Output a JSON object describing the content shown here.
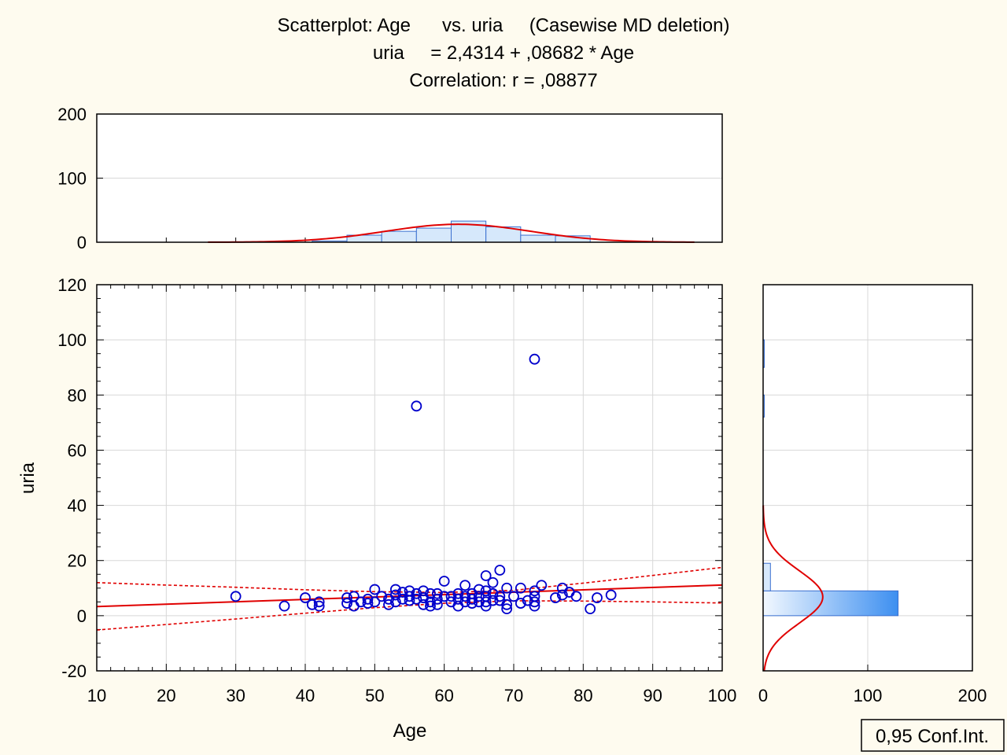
{
  "title": {
    "line1": "Scatterplot: Age      vs. uria     (Casewise MD deletion)",
    "line2": "uria     = 2,4314 + ,08682 * Age",
    "line3": "Correlation: r = ,08877"
  },
  "legend_label": "0,95 Conf.Int.",
  "colors": {
    "background": "#fefbef",
    "marker": "#0000cc",
    "fit_line": "#e00000",
    "hist_fill": "#d6e8fb",
    "hist_edge": "#3a6fd0",
    "grid": "#d8d8d8"
  },
  "chart_data": [
    {
      "type": "scatter",
      "xlabel": "Age",
      "ylabel": "uria",
      "xlim": [
        10,
        100
      ],
      "ylim": [
        -20,
        120
      ],
      "xticks": [
        10,
        20,
        30,
        40,
        50,
        60,
        70,
        80,
        90,
        100
      ],
      "yticks": [
        -20,
        0,
        20,
        40,
        60,
        80,
        100,
        120
      ],
      "xtick_labels": [
        "10",
        "20",
        "30",
        "40",
        "50",
        "60",
        "70",
        "80",
        "90",
        "100"
      ],
      "ytick_labels": [
        "-20",
        "0",
        "20",
        "40",
        "60",
        "80",
        "100",
        "120"
      ],
      "grid": true,
      "marker": "open-circle",
      "regression": {
        "intercept": 2.4314,
        "slope": 0.08682
      },
      "confidence_band": {
        "level": 0.95,
        "x": [
          10,
          20,
          30,
          40,
          50,
          60,
          70,
          80,
          90,
          100
        ],
        "lower": [
          -5.2,
          -3.2,
          -1.2,
          0.9,
          2.9,
          4.5,
          5.4,
          5.3,
          5.0,
          4.6
        ],
        "upper": [
          12.0,
          11.1,
          10.3,
          9.4,
          8.7,
          8.4,
          9.2,
          11.8,
          14.6,
          17.5
        ]
      },
      "points": [
        [
          30,
          7
        ],
        [
          37,
          3.5
        ],
        [
          40,
          6.5
        ],
        [
          41,
          4
        ],
        [
          42,
          5
        ],
        [
          42,
          3.5
        ],
        [
          46,
          6.5
        ],
        [
          46,
          4.5
        ],
        [
          47,
          7
        ],
        [
          47,
          3.5
        ],
        [
          48,
          5
        ],
        [
          49,
          6
        ],
        [
          49,
          4.5
        ],
        [
          50,
          9.5
        ],
        [
          50,
          5
        ],
        [
          51,
          7
        ],
        [
          52,
          6
        ],
        [
          52,
          4
        ],
        [
          53,
          9.5
        ],
        [
          53,
          5
        ],
        [
          53,
          7.5
        ],
        [
          54,
          8.5
        ],
        [
          54,
          6
        ],
        [
          55,
          9
        ],
        [
          55,
          5.5
        ],
        [
          55,
          7
        ],
        [
          56,
          76
        ],
        [
          56,
          8
        ],
        [
          56,
          6
        ],
        [
          57,
          9
        ],
        [
          57,
          4
        ],
        [
          57,
          6.5
        ],
        [
          58,
          8
        ],
        [
          58,
          5
        ],
        [
          58,
          3.5
        ],
        [
          59,
          8
        ],
        [
          59,
          6
        ],
        [
          59,
          4
        ],
        [
          60,
          12.5
        ],
        [
          60,
          7
        ],
        [
          61,
          7
        ],
        [
          61,
          5
        ],
        [
          62,
          8
        ],
        [
          62,
          6
        ],
        [
          62,
          3.5
        ],
        [
          63,
          11
        ],
        [
          63,
          7
        ],
        [
          63,
          5
        ],
        [
          64,
          8
        ],
        [
          64,
          6
        ],
        [
          64,
          4.5
        ],
        [
          65,
          9.5
        ],
        [
          65,
          7
        ],
        [
          65,
          5
        ],
        [
          66,
          14.5
        ],
        [
          66,
          9
        ],
        [
          66,
          7
        ],
        [
          66,
          5
        ],
        [
          66,
          3.5
        ],
        [
          67,
          12
        ],
        [
          67,
          8
        ],
        [
          67,
          5.5
        ],
        [
          68,
          16.5
        ],
        [
          68,
          7
        ],
        [
          68,
          5.5
        ],
        [
          69,
          10
        ],
        [
          69,
          4
        ],
        [
          69,
          2.5
        ],
        [
          70,
          7
        ],
        [
          71,
          10
        ],
        [
          71,
          4.5
        ],
        [
          72,
          5.5
        ],
        [
          73,
          93
        ],
        [
          73,
          9
        ],
        [
          73,
          7
        ],
        [
          73,
          5
        ],
        [
          73,
          3.5
        ],
        [
          74,
          11
        ],
        [
          76,
          6.5
        ],
        [
          77,
          10
        ],
        [
          77,
          7.5
        ],
        [
          78,
          8.5
        ],
        [
          79,
          7
        ],
        [
          81,
          2.5
        ],
        [
          82,
          6.5
        ],
        [
          84,
          7.5
        ]
      ]
    },
    {
      "type": "bar",
      "name": "Age histogram",
      "orientation": "vertical",
      "ylim": [
        0,
        200
      ],
      "yticks": [
        0,
        100,
        200
      ],
      "ytick_labels": [
        "0",
        "100",
        "200"
      ],
      "bin_edges": [
        41,
        46,
        51,
        56,
        61,
        66,
        71,
        76,
        81
      ],
      "counts": [
        2,
        11,
        17,
        22,
        33,
        24,
        11,
        10
      ],
      "normal_curve": {
        "mean": 62,
        "sd": 10.5,
        "peak": 28
      }
    },
    {
      "type": "bar",
      "name": "uria histogram",
      "orientation": "horizontal",
      "xlim": [
        0,
        200
      ],
      "xticks": [
        0,
        100,
        200
      ],
      "xtick_labels": [
        "0",
        "100",
        "200"
      ],
      "bin_edges": [
        -20,
        0,
        10,
        20,
        90,
        100
      ],
      "counts": [
        0,
        129,
        7,
        0,
        1
      ],
      "bins": [
        {
          "y_from": 0,
          "y_to": 9,
          "count": 129
        },
        {
          "y_from": 9,
          "y_to": 19,
          "count": 7
        },
        {
          "y_from": 72,
          "y_to": 80,
          "count": 1
        },
        {
          "y_from": 90,
          "y_to": 100,
          "count": 1
        }
      ],
      "normal_curve": {
        "mean": 6.8,
        "sd": 9.5,
        "peak": 57
      }
    }
  ]
}
